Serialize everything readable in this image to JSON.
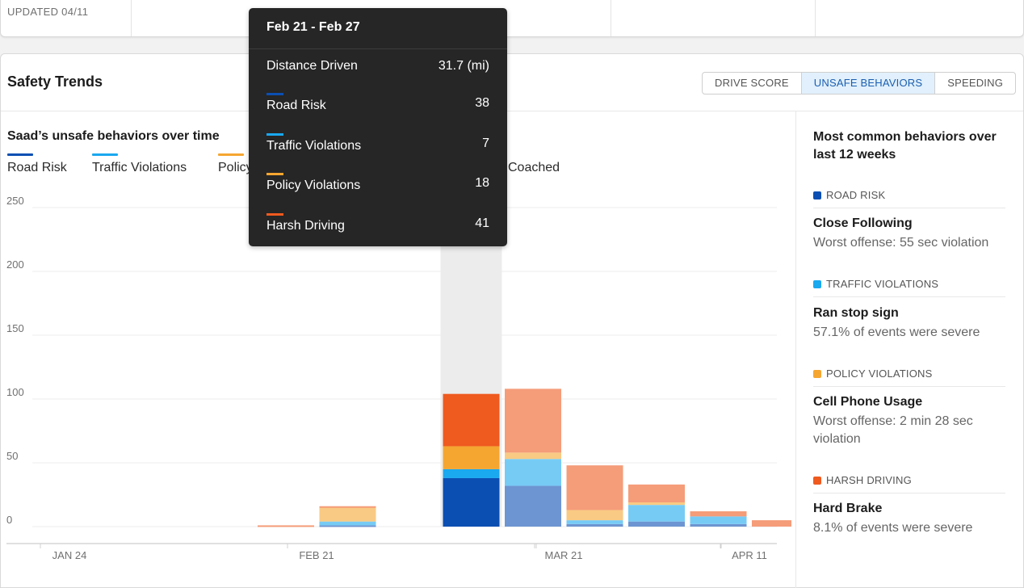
{
  "top": {
    "updated": "UPDATED 04/11"
  },
  "card": {
    "title": "Safety Trends"
  },
  "tabs": [
    {
      "label": "DRIVE SCORE",
      "active": false
    },
    {
      "label": "UNSAFE BEHAVIORS",
      "active": true
    },
    {
      "label": "SPEEDING",
      "active": false
    }
  ],
  "chart_header": {
    "title": "Saad’s unsafe behaviors over time"
  },
  "legend": [
    {
      "label": "Road Risk",
      "color": "#0b4fb3"
    },
    {
      "label": "Traffic Violations",
      "color": "#1aa8ef"
    },
    {
      "label": "Policy",
      "color": "#f5a631"
    },
    {
      "label": "Coached",
      "color": ""
    }
  ],
  "tooltip": {
    "title": "Feb 21 - Feb 27",
    "rows": [
      {
        "label": "Distance Driven",
        "value": "31.7 (mi)",
        "color": ""
      },
      {
        "label": "Road Risk",
        "value": "38",
        "color": "#0b4fb3"
      },
      {
        "label": "Traffic Violations",
        "value": "7",
        "color": "#1aa8ef"
      },
      {
        "label": "Policy Violations",
        "value": "18",
        "color": "#f5a631"
      },
      {
        "label": "Harsh Driving",
        "value": "41",
        "color": "#ef5a1f"
      }
    ]
  },
  "chart_data": {
    "type": "bar",
    "stacked": true,
    "ylim": [
      0,
      250
    ],
    "yticks": [
      0,
      50,
      100,
      150,
      200,
      250
    ],
    "x_tick_labels": [
      "JAN 24",
      "FEB 21",
      "MAR 21",
      "APR 11"
    ],
    "highlighted_week": "Feb 21 - Feb 27",
    "series": [
      {
        "name": "Road Risk",
        "color": "#0b4fb3",
        "values": [
          0,
          0,
          0,
          1,
          0,
          38,
          32,
          2,
          4,
          2,
          0
        ]
      },
      {
        "name": "Traffic Violations",
        "color": "#1aa8ef",
        "values": [
          0,
          0,
          0,
          3,
          0,
          7,
          21,
          3,
          13,
          6,
          0
        ]
      },
      {
        "name": "Policy Violations",
        "color": "#f5a631",
        "values": [
          0,
          0,
          0,
          11,
          0,
          18,
          5,
          8,
          2,
          0,
          0
        ]
      },
      {
        "name": "Harsh Driving",
        "color": "#ef5a1f",
        "values": [
          0,
          0,
          1,
          1,
          0,
          41,
          50,
          35,
          14,
          4,
          5
        ]
      }
    ]
  },
  "side": {
    "title": "Most common behaviors over last 12 weeks",
    "items": [
      {
        "category": "ROAD RISK",
        "color": "#0b4fb3",
        "name": "Close Following",
        "desc": "Worst offense: 55 sec violation"
      },
      {
        "category": "TRAFFIC VIOLATIONS",
        "color": "#1aa8ef",
        "name": "Ran stop sign",
        "desc": "57.1% of events were severe"
      },
      {
        "category": "POLICY VIOLATIONS",
        "color": "#f5a631",
        "name": "Cell Phone Usage",
        "desc": "Worst offense: 2 min 28 sec violation"
      },
      {
        "category": "HARSH DRIVING",
        "color": "#ef5a1f",
        "name": "Hard Brake",
        "desc": "8.1% of events were severe"
      }
    ]
  }
}
